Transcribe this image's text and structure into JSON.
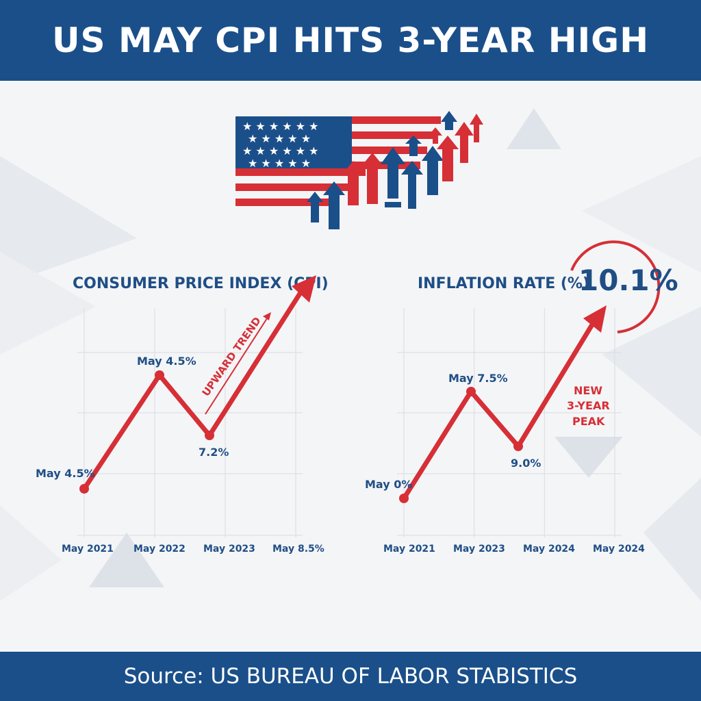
{
  "header": {
    "title": "US MAY CPI HITS 3-YEAR HIGH"
  },
  "footer": {
    "source": "Source: US BUREAU OF LABOR STABISTICS"
  },
  "colors": {
    "navy": "#1a4f8a",
    "red": "#d62f36",
    "text_blue": "#1f4e85"
  },
  "hero": {
    "icon": "us-flag-with-rising-arrows-icon"
  },
  "chart_data": [
    {
      "type": "line",
      "title": "CONSUMER PRICE INDEX (CPI)",
      "categories": [
        "May 2021",
        "May 2022",
        "May 2023",
        "May 8.5%"
      ],
      "point_labels": [
        "May 4.5%",
        "May 4.5%",
        "7.2%"
      ],
      "annotation": "UPWARD TREND",
      "grid": true
    },
    {
      "type": "line",
      "title": "INFLATION RATE (%)",
      "categories": [
        "May 2021",
        "May 2023",
        "May 2024",
        "May 2024"
      ],
      "point_labels": [
        "May 0%",
        "May 7.5%",
        "9.0%"
      ],
      "highlight_value": "10.1%",
      "annotation_lines": [
        "NEW",
        "3-YEAR",
        "PEAK"
      ],
      "grid": true
    }
  ]
}
